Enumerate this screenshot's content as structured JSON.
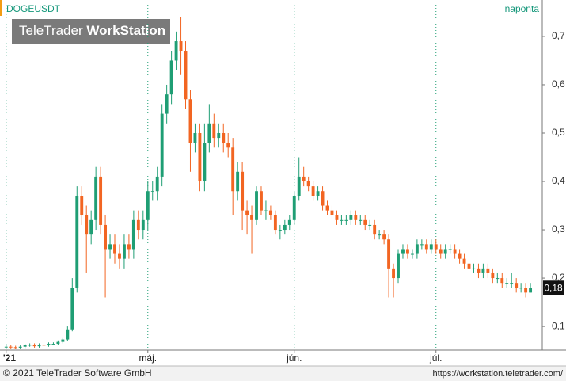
{
  "chart_data": {
    "type": "candlestick",
    "title": "DOGEUSDT",
    "subtitle": "naponta",
    "logo": {
      "part1": "TeleTrader",
      "part2": "WorkStation"
    },
    "footer_left": "© 2021 TeleTrader Software GmbH",
    "footer_right": "https://workstation.teletrader.com/",
    "up_color": "#1f9e74",
    "down_color": "#f26522",
    "grid": true,
    "xlim": [
      -0.8,
      113.5
    ],
    "xticks": [
      {
        "value": 0,
        "label": "'21"
      },
      {
        "value": 30,
        "label": "máj."
      },
      {
        "value": 61,
        "label": "jún."
      },
      {
        "value": 91,
        "label": "júl."
      }
    ],
    "ylim": [
      0.051,
      0.772
    ],
    "yticks": [
      {
        "value": 0.1,
        "label": "0,1"
      },
      {
        "value": 0.2,
        "label": "0,2"
      },
      {
        "value": 0.3,
        "label": "0,3"
      },
      {
        "value": 0.4,
        "label": "0,4"
      },
      {
        "value": 0.5,
        "label": "0,5"
      },
      {
        "value": 0.6,
        "label": "0,6"
      },
      {
        "value": 0.7,
        "label": "0,7"
      }
    ],
    "last_price": {
      "value": 0.18,
      "label": "0,18"
    },
    "open": [
      0.057,
      0.058,
      0.057,
      0.056,
      0.058,
      0.061,
      0.062,
      0.059,
      0.062,
      0.061,
      0.064,
      0.064,
      0.068,
      0.073,
      0.094,
      0.18,
      0.37,
      0.33,
      0.29,
      0.32,
      0.41,
      0.31,
      0.26,
      0.27,
      0.25,
      0.24,
      0.27,
      0.26,
      0.32,
      0.3,
      0.32,
      0.38,
      0.38,
      0.41,
      0.54,
      0.58,
      0.65,
      0.69,
      0.67,
      0.57,
      0.48,
      0.5,
      0.4,
      0.48,
      0.52,
      0.49,
      0.5,
      0.48,
      0.47,
      0.38,
      0.42,
      0.34,
      0.33,
      0.32,
      0.38,
      0.34,
      0.34,
      0.33,
      0.3,
      0.3,
      0.31,
      0.32,
      0.37,
      0.41,
      0.4,
      0.39,
      0.37,
      0.38,
      0.35,
      0.34,
      0.33,
      0.32,
      0.32,
      0.32,
      0.33,
      0.32,
      0.32,
      0.31,
      0.31,
      0.29,
      0.29,
      0.28,
      0.22,
      0.2,
      0.25,
      0.26,
      0.25,
      0.25,
      0.27,
      0.27,
      0.26,
      0.27,
      0.26,
      0.25,
      0.26,
      0.26,
      0.25,
      0.24,
      0.23,
      0.22,
      0.22,
      0.21,
      0.22,
      0.21,
      0.2,
      0.2,
      0.19,
      0.19,
      0.19,
      0.18,
      0.18,
      0.17
    ],
    "high": [
      0.061,
      0.061,
      0.06,
      0.061,
      0.064,
      0.065,
      0.065,
      0.065,
      0.065,
      0.067,
      0.067,
      0.071,
      0.076,
      0.1,
      0.2,
      0.39,
      0.39,
      0.35,
      0.34,
      0.43,
      0.43,
      0.33,
      0.29,
      0.29,
      0.27,
      0.29,
      0.29,
      0.34,
      0.34,
      0.34,
      0.4,
      0.4,
      0.43,
      0.56,
      0.6,
      0.67,
      0.71,
      0.74,
      0.69,
      0.59,
      0.52,
      0.52,
      0.52,
      0.56,
      0.54,
      0.52,
      0.52,
      0.5,
      0.49,
      0.44,
      0.44,
      0.36,
      0.35,
      0.39,
      0.39,
      0.36,
      0.35,
      0.34,
      0.31,
      0.32,
      0.33,
      0.38,
      0.45,
      0.43,
      0.41,
      0.4,
      0.39,
      0.39,
      0.36,
      0.35,
      0.34,
      0.33,
      0.33,
      0.34,
      0.34,
      0.33,
      0.33,
      0.32,
      0.32,
      0.3,
      0.3,
      0.29,
      0.23,
      0.26,
      0.27,
      0.27,
      0.26,
      0.28,
      0.28,
      0.28,
      0.28,
      0.28,
      0.27,
      0.27,
      0.27,
      0.27,
      0.26,
      0.25,
      0.24,
      0.23,
      0.23,
      0.23,
      0.23,
      0.22,
      0.21,
      0.21,
      0.2,
      0.21,
      0.2,
      0.19,
      0.19,
      0.19
    ],
    "low": [
      0.054,
      0.054,
      0.053,
      0.053,
      0.055,
      0.058,
      0.056,
      0.056,
      0.058,
      0.058,
      0.061,
      0.061,
      0.065,
      0.07,
      0.09,
      0.17,
      0.31,
      0.21,
      0.27,
      0.3,
      0.29,
      0.16,
      0.24,
      0.23,
      0.22,
      0.22,
      0.24,
      0.24,
      0.28,
      0.28,
      0.3,
      0.36,
      0.36,
      0.39,
      0.52,
      0.56,
      0.63,
      0.62,
      0.55,
      0.42,
      0.46,
      0.38,
      0.38,
      0.46,
      0.47,
      0.47,
      0.46,
      0.45,
      0.33,
      0.36,
      0.3,
      0.29,
      0.25,
      0.31,
      0.33,
      0.32,
      0.32,
      0.29,
      0.28,
      0.29,
      0.3,
      0.31,
      0.36,
      0.39,
      0.38,
      0.36,
      0.36,
      0.34,
      0.33,
      0.32,
      0.31,
      0.31,
      0.31,
      0.31,
      0.31,
      0.31,
      0.3,
      0.3,
      0.28,
      0.28,
      0.27,
      0.16,
      0.16,
      0.19,
      0.24,
      0.24,
      0.24,
      0.24,
      0.26,
      0.25,
      0.25,
      0.25,
      0.24,
      0.24,
      0.25,
      0.24,
      0.23,
      0.22,
      0.21,
      0.21,
      0.2,
      0.2,
      0.2,
      0.19,
      0.19,
      0.18,
      0.18,
      0.18,
      0.17,
      0.17,
      0.16,
      0.17
    ],
    "close": [
      0.058,
      0.057,
      0.056,
      0.058,
      0.061,
      0.062,
      0.059,
      0.062,
      0.061,
      0.064,
      0.064,
      0.068,
      0.073,
      0.094,
      0.18,
      0.37,
      0.33,
      0.29,
      0.32,
      0.41,
      0.31,
      0.26,
      0.27,
      0.25,
      0.24,
      0.27,
      0.26,
      0.32,
      0.3,
      0.32,
      0.38,
      0.38,
      0.41,
      0.54,
      0.58,
      0.65,
      0.69,
      0.67,
      0.57,
      0.48,
      0.5,
      0.4,
      0.48,
      0.52,
      0.49,
      0.5,
      0.48,
      0.47,
      0.38,
      0.42,
      0.34,
      0.33,
      0.32,
      0.38,
      0.34,
      0.34,
      0.33,
      0.3,
      0.3,
      0.31,
      0.32,
      0.37,
      0.41,
      0.4,
      0.39,
      0.37,
      0.38,
      0.35,
      0.34,
      0.33,
      0.32,
      0.32,
      0.32,
      0.33,
      0.32,
      0.32,
      0.31,
      0.31,
      0.29,
      0.29,
      0.28,
      0.22,
      0.2,
      0.25,
      0.26,
      0.25,
      0.25,
      0.27,
      0.27,
      0.26,
      0.27,
      0.26,
      0.25,
      0.26,
      0.26,
      0.25,
      0.24,
      0.23,
      0.22,
      0.22,
      0.21,
      0.22,
      0.21,
      0.2,
      0.2,
      0.19,
      0.19,
      0.19,
      0.18,
      0.18,
      0.17,
      0.18
    ]
  }
}
